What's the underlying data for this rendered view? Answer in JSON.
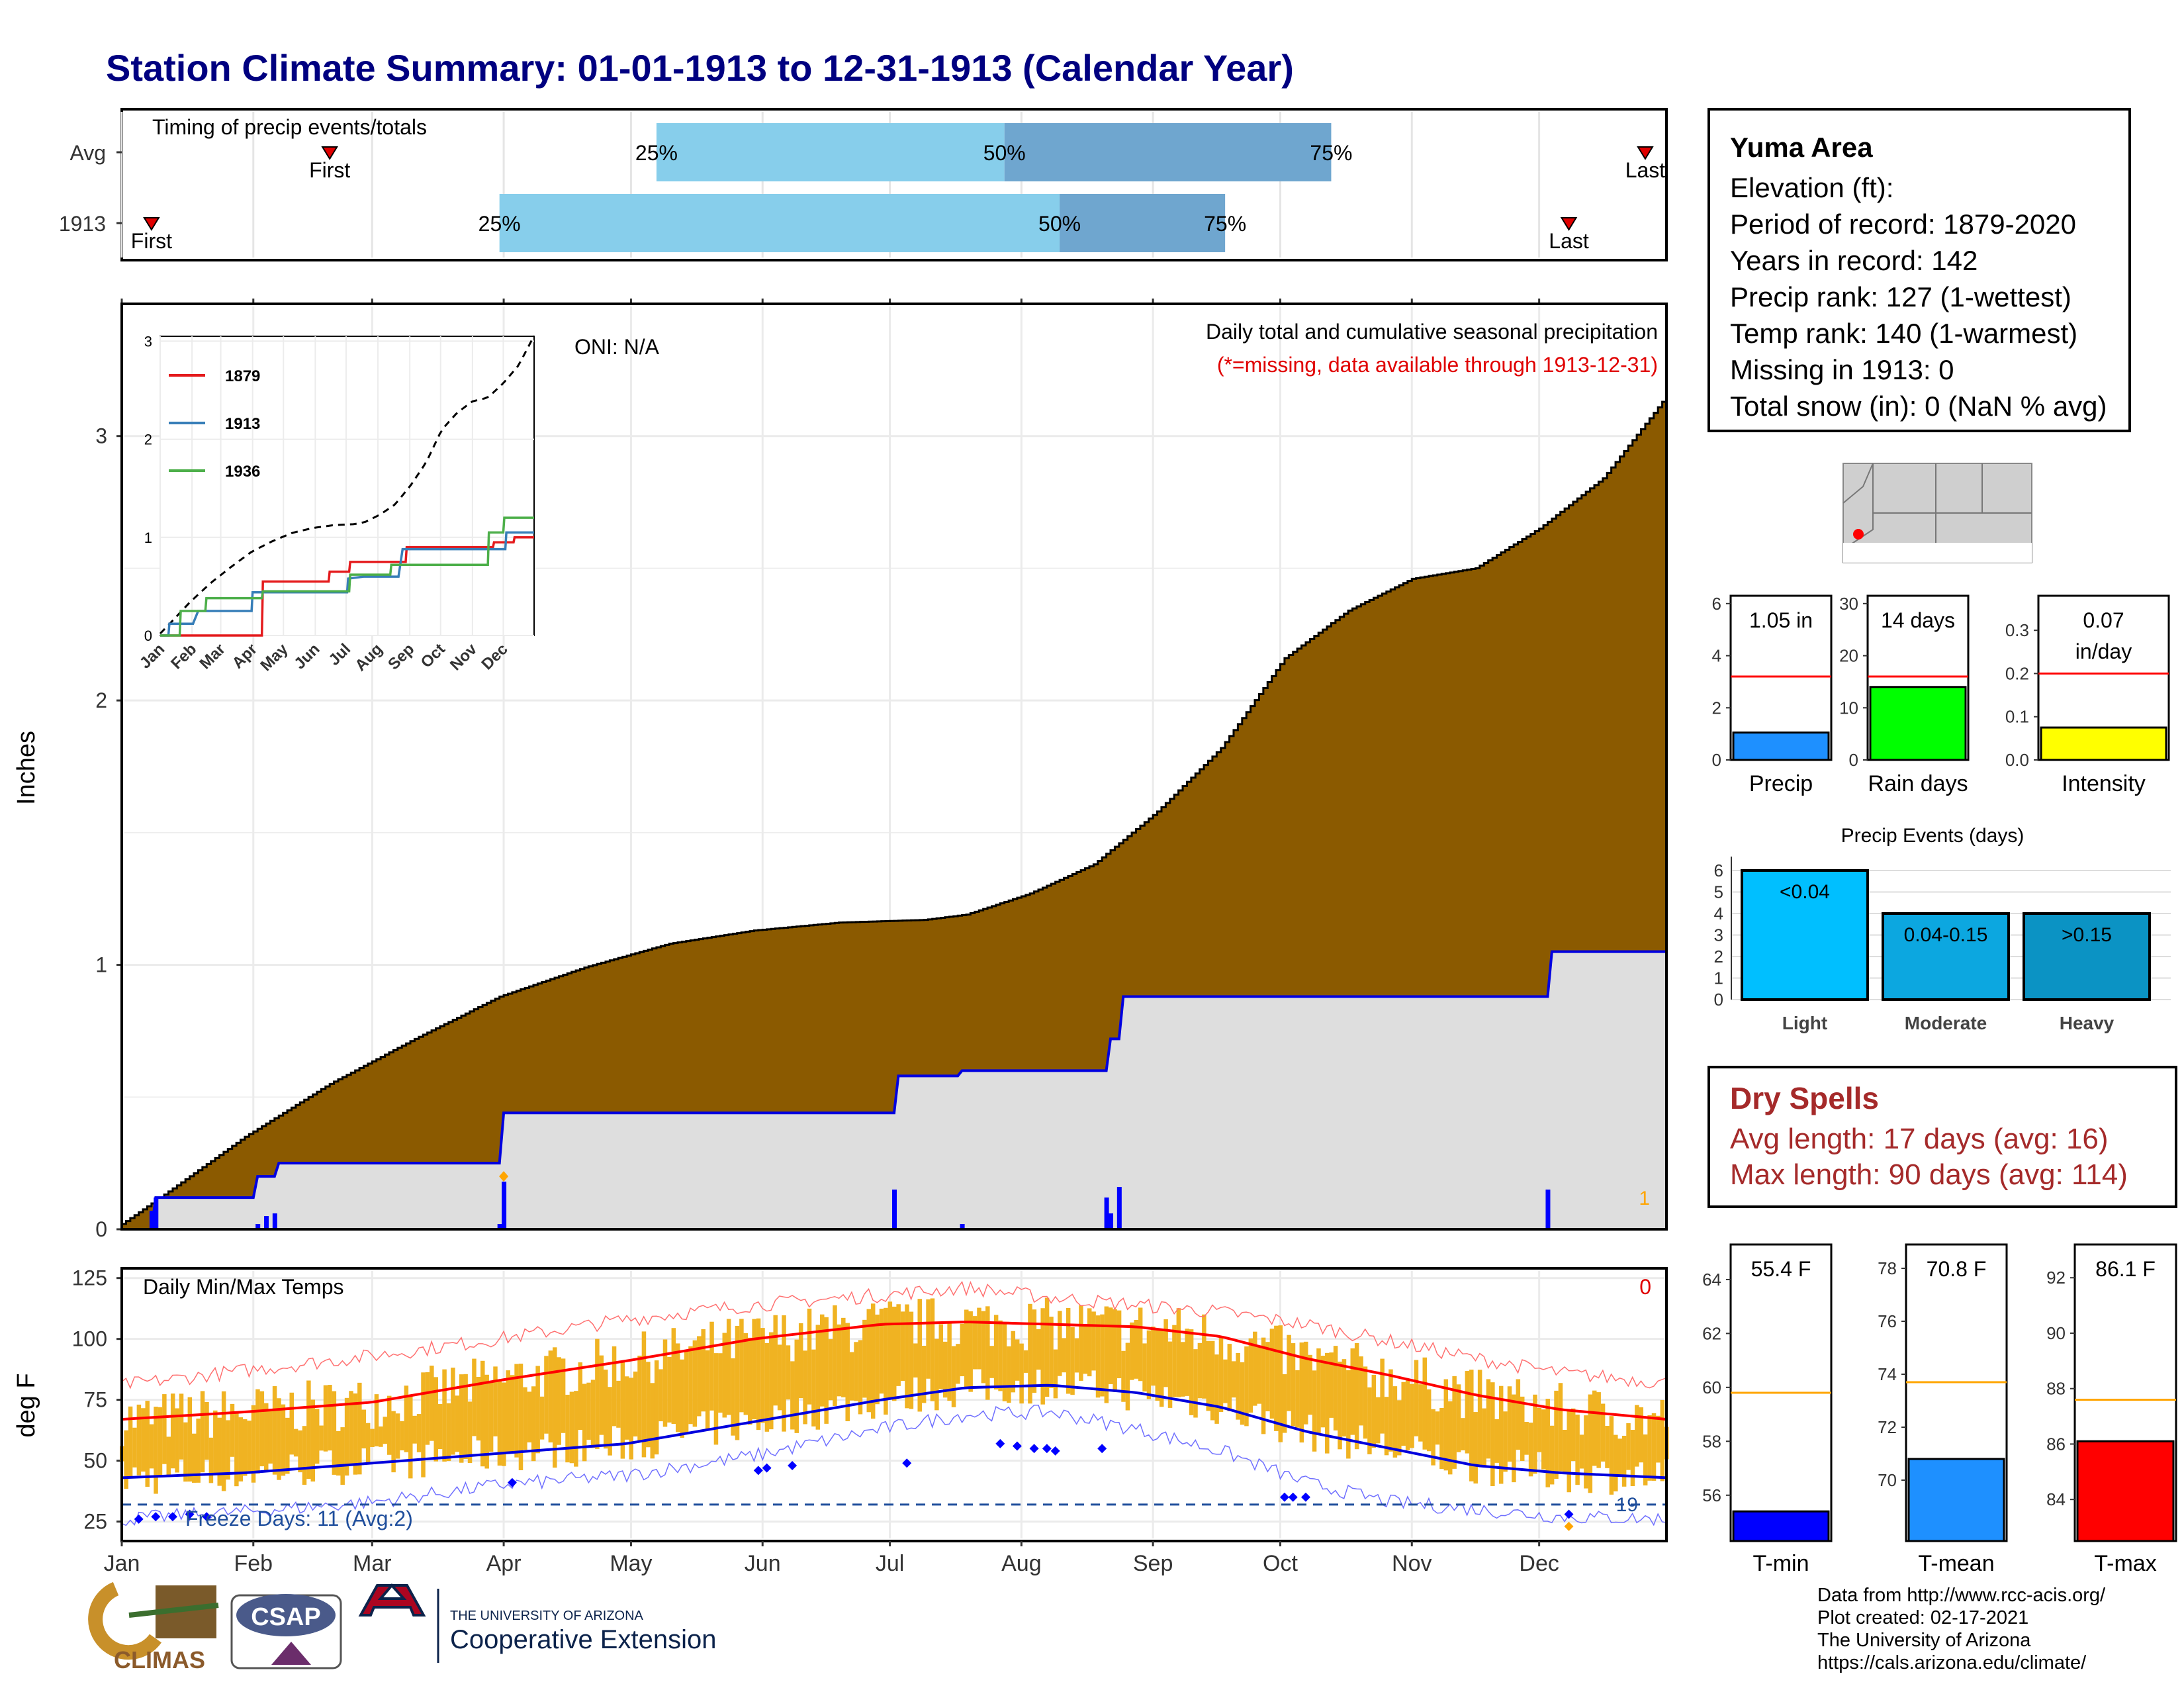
{
  "title": "Station Climate Summary: 01-01-1913 to 12-31-1913 (Calendar Year)",
  "months": [
    "Jan",
    "Feb",
    "Mar",
    "Apr",
    "May",
    "Jun",
    "Jul",
    "Aug",
    "Sep",
    "Oct",
    "Nov",
    "Dec"
  ],
  "timing": {
    "label": "Timing of precip events/totals",
    "rows": [
      {
        "name": "Avg",
        "first": "First",
        "last": "Last",
        "p25_label": "25%",
        "p50_label": "50%",
        "p75_label": "75%",
        "first_day": 50,
        "p25_day": 127,
        "p50_day": 209,
        "p75_day": 286,
        "last_day": 360
      },
      {
        "name": "1913",
        "first": "First",
        "last": "Last",
        "p25_label": "25%",
        "p50_label": "50%",
        "p75_label": "75%",
        "first_day": 8,
        "p25_day": 90,
        "p50_day": 222,
        "p75_day": 261,
        "last_day": 342
      }
    ]
  },
  "precip_panel": {
    "oni": "ONI: N/A",
    "title": "Daily total and cumulative seasonal precipitation",
    "missing_note": "(*=missing, data available through 1913-12-31)",
    "ylabel": "Inches",
    "yticks": [
      "0",
      "1",
      "2",
      "3"
    ],
    "corner_value": "1"
  },
  "inset": {
    "legend": [
      "1879",
      "1913",
      "1936"
    ],
    "yticks": [
      "0",
      "1",
      "2",
      "3"
    ],
    "colors": [
      "#e41a1c",
      "#377eb8",
      "#4daf4a"
    ]
  },
  "temp_panel": {
    "title": "Daily Min/Max Temps",
    "ylabel": "deg F",
    "yticks": [
      "25",
      "50",
      "75",
      "100",
      "125"
    ],
    "corner_value": "0",
    "freeze_label": "Freeze Days: 11 (Avg:2)",
    "freeze_right": "19"
  },
  "station": {
    "name": "Yuma Area",
    "elevation": "Elevation (ft):",
    "period": "Period of record: 1879-2020",
    "years": "Years in record: 142",
    "precip_rank": "Precip rank: 127 (1-wettest)",
    "temp_rank": "Temp rank: 140 (1-warmest)",
    "missing": "Missing in 1913: 0",
    "snow": "Total snow (in): 0 (NaN % avg)"
  },
  "summary_bars": [
    {
      "name": "Precip",
      "value_label": "1.05 in",
      "value_label2": "",
      "value": 1.05,
      "avg": 3.2,
      "ymax": 6.3,
      "ticks": [
        "0",
        "2",
        "4",
        "6"
      ],
      "tick_vals": [
        0,
        2,
        4,
        6
      ],
      "color": "#1e90ff"
    },
    {
      "name": "Rain days",
      "value_label": "14 days",
      "value_label2": "",
      "value": 14,
      "avg": 16,
      "ymax": 31.5,
      "ticks": [
        "0",
        "10",
        "20",
        "30"
      ],
      "tick_vals": [
        0,
        10,
        20,
        30
      ],
      "color": "#00ff00"
    },
    {
      "name": "Intensity",
      "value_label": "0.07",
      "value_label2": "in/day",
      "value": 0.075,
      "avg": 0.2,
      "ymax": 0.38,
      "ticks": [
        "0.0",
        "0.1",
        "0.2",
        "0.3"
      ],
      "tick_vals": [
        0,
        0.1,
        0.2,
        0.3
      ],
      "color": "#ffff00"
    }
  ],
  "events": {
    "title": "Precip Events (days)",
    "yticks": [
      "0",
      "1",
      "2",
      "3",
      "4",
      "5",
      "6"
    ],
    "bars": [
      {
        "name": "Light",
        "range": "<0.04",
        "value": 6,
        "color": "#00bfff"
      },
      {
        "name": "Moderate",
        "range": "0.04-0.15",
        "value": 4,
        "color": "#0ca7e0"
      },
      {
        "name": "Heavy",
        "range": ">0.15",
        "value": 4,
        "color": "#0b93c4"
      }
    ]
  },
  "dry_spells": {
    "title": "Dry Spells",
    "avg": "Avg length: 17 days (avg: 16)",
    "max": "Max length: 90 days (avg: 114)"
  },
  "temp_bars": [
    {
      "name": "T-min",
      "value_label": "55.4 F",
      "value": 55.4,
      "avg": 59.8,
      "ymin": 54.3,
      "ymax": 65.3,
      "ticks": [
        "56",
        "58",
        "60",
        "62",
        "64"
      ],
      "tick_vals": [
        56,
        58,
        60,
        62,
        64
      ],
      "color": "#0000ff"
    },
    {
      "name": "T-mean",
      "value_label": "70.8 F",
      "value": 70.8,
      "avg": 73.7,
      "ymin": 67.7,
      "ymax": 78.9,
      "ticks": [
        "70",
        "72",
        "74",
        "76",
        "78"
      ],
      "tick_vals": [
        70,
        72,
        74,
        76,
        78
      ],
      "color": "#1e90ff"
    },
    {
      "name": "T-max",
      "value_label": "86.1 F",
      "value": 86.1,
      "avg": 87.6,
      "ymin": 82.5,
      "ymax": 93.2,
      "ticks": [
        "84",
        "86",
        "88",
        "90",
        "92"
      ],
      "tick_vals": [
        84,
        86,
        88,
        90,
        92
      ],
      "color": "#ff0000"
    }
  ],
  "logos": {
    "climas": "CLIMAS",
    "csap": "CSAP",
    "ua_small": "THE UNIVERSITY OF ARIZONA",
    "ua_big": "Cooperative Extension"
  },
  "credits": [
    "Data from http://www.rcc-acis.org/",
    "Plot created: 02-17-2021",
    "The University of Arizona",
    "https://cals.arizona.edu/climate/"
  ],
  "chart_data": [
    {
      "type": "line",
      "title": "Daily total and cumulative seasonal precipitation",
      "ylabel": "Inches",
      "ylim": [
        0,
        3.5
      ],
      "x_unit": "day of year",
      "series": [
        {
          "name": "Avg",
          "x": [
            1,
            10,
            30,
            50,
            70,
            90,
            110,
            130,
            150,
            170,
            190,
            200,
            215,
            230,
            245,
            260,
            275,
            290,
            305,
            320,
            335,
            350,
            365
          ],
          "values": [
            0.02,
            0.12,
            0.35,
            0.55,
            0.72,
            0.88,
            0.99,
            1.08,
            1.13,
            1.16,
            1.17,
            1.19,
            1.27,
            1.38,
            1.58,
            1.82,
            2.16,
            2.34,
            2.46,
            2.5,
            2.65,
            2.84,
            3.15
          ]
        },
        {
          "name": "1913",
          "x": [
            1,
            8,
            9,
            32,
            33,
            37,
            38,
            90,
            91,
            183,
            184,
            198,
            199,
            233,
            234,
            236,
            237,
            337,
            338,
            365
          ],
          "values": [
            0,
            0,
            0.12,
            0.12,
            0.2,
            0.2,
            0.25,
            0.25,
            0.44,
            0.44,
            0.58,
            0.58,
            0.6,
            0.6,
            0.72,
            0.72,
            0.88,
            0.88,
            1.05,
            1.05
          ]
        }
      ],
      "daily_bars": {
        "x": [
          8,
          9,
          33,
          35,
          37,
          90,
          91,
          183,
          199,
          233,
          234,
          236,
          337
        ],
        "values": [
          0.07,
          0.12,
          0.02,
          0.05,
          0.06,
          0.02,
          0.18,
          0.15,
          0.02,
          0.12,
          0.06,
          0.16,
          0.15
        ]
      }
    },
    {
      "type": "line",
      "title": "Daily Min/Max Temps",
      "ylabel": "deg F",
      "ylim": [
        17,
        129
      ],
      "x_unit": "day of year",
      "series": [
        {
          "name": "Avg max",
          "x": [
            1,
            30,
            60,
            90,
            120,
            150,
            180,
            200,
            220,
            240,
            260,
            280,
            300,
            320,
            340,
            365
          ],
          "values": [
            67,
            70,
            74,
            83,
            91,
            100,
            106,
            107,
            106,
            105,
            101,
            92,
            85,
            77,
            71,
            67
          ]
        },
        {
          "name": "Avg min",
          "x": [
            1,
            30,
            60,
            90,
            120,
            150,
            180,
            200,
            220,
            240,
            260,
            280,
            300,
            320,
            340,
            365
          ],
          "values": [
            43,
            45,
            49,
            53,
            57,
            66,
            75,
            80,
            81,
            78,
            72,
            62,
            55,
            48,
            45,
            43
          ]
        },
        {
          "name": "Record max",
          "x": [
            1,
            30,
            60,
            90,
            120,
            150,
            180,
            200,
            220,
            240,
            260,
            280,
            300,
            320,
            340,
            365
          ],
          "values": [
            81,
            87,
            93,
            100,
            108,
            114,
            118,
            121,
            117,
            114,
            111,
            106,
            99,
            92,
            86,
            82
          ]
        },
        {
          "name": "Record min",
          "x": [
            1,
            30,
            60,
            90,
            120,
            150,
            180,
            200,
            220,
            240,
            260,
            280,
            300,
            320,
            340,
            365
          ],
          "values": [
            26,
            29,
            33,
            40,
            44,
            52,
            63,
            69,
            70,
            63,
            54,
            41,
            33,
            30,
            27,
            26
          ]
        }
      ],
      "freeze_line": 32
    }
  ]
}
